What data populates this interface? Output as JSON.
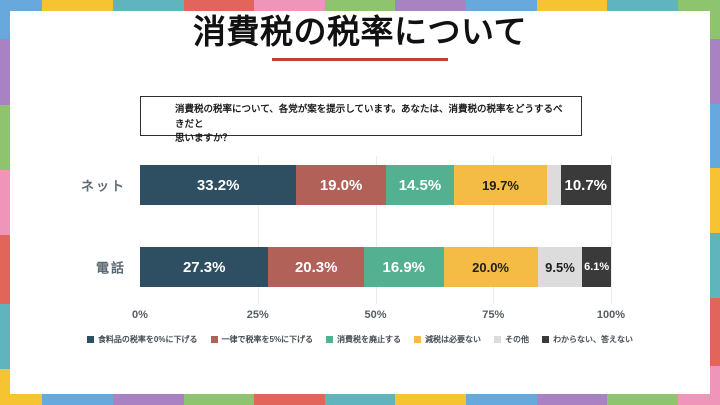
{
  "page": {
    "title": "消費税の税率について",
    "title_underline_color": "#bf4038",
    "question": "消費税の税率について、各党が案を提示しています。あなたは、消費税の税率をどうするべきだと\n思いますか？"
  },
  "chart_data": {
    "type": "bar",
    "subtype": "horizontal-stacked",
    "title": "消費税の税率について",
    "categories": [
      "ネット",
      "電話"
    ],
    "series": [
      {
        "name": "食料品の税率を0%に下げる",
        "color": "#2e4e61",
        "label_color": "#ffffff",
        "values": [
          33.2,
          27.3
        ],
        "labels": [
          "33.2%",
          "27.3%"
        ]
      },
      {
        "name": "一律で税率を5%に下げる",
        "color": "#b26158",
        "label_color": "#ffffff",
        "values": [
          19.0,
          20.3
        ],
        "labels": [
          "19.0%",
          "20.3%"
        ]
      },
      {
        "name": "消費税を廃止する",
        "color": "#53b091",
        "label_color": "#ffffff",
        "values": [
          14.5,
          16.9
        ],
        "labels": [
          "14.5%",
          "16.9%"
        ]
      },
      {
        "name": "減税は必要ない",
        "color": "#f4bb45",
        "label_color": "#1d1d1d",
        "values": [
          19.7,
          20.0
        ],
        "labels": [
          "19.7%",
          "20.0%"
        ]
      },
      {
        "name": "その他",
        "color": "#dcdcdc",
        "label_color": "#1d1d1d",
        "values": [
          2.9,
          9.5
        ],
        "labels": [
          "",
          "9.5%"
        ]
      },
      {
        "name": "わからない、答えない",
        "color": "#3a3a3a",
        "label_color": "#ffffff",
        "values": [
          10.7,
          6.1
        ],
        "labels": [
          "10.7%",
          "6.1%"
        ]
      }
    ],
    "x_ticks": [
      "0%",
      "25%",
      "50%",
      "75%",
      "100%"
    ],
    "x_range": [
      0,
      100
    ],
    "gridlines": true,
    "legend_position": "bottom"
  },
  "frame": {
    "palette": {
      "blue": "#68a9dd",
      "yellow": "#f6c332",
      "teal": "#5fb4bd",
      "red": "#e2655c",
      "pink": "#f095ba",
      "green": "#8ec46d",
      "purple": "#a882c2"
    },
    "sides": {
      "top": [
        [
          "blue",
          0.6
        ],
        [
          "yellow",
          1
        ],
        [
          "teal",
          1
        ],
        [
          "red",
          1
        ],
        [
          "pink",
          1
        ],
        [
          "green",
          1
        ],
        [
          "purple",
          1
        ],
        [
          "blue",
          1
        ],
        [
          "yellow",
          1
        ],
        [
          "teal",
          1
        ],
        [
          "green",
          0.6
        ]
      ],
      "right": [
        [
          "green",
          0.6
        ],
        [
          "purple",
          1
        ],
        [
          "blue",
          1
        ],
        [
          "yellow",
          1
        ],
        [
          "teal",
          1
        ],
        [
          "red",
          1.05
        ],
        [
          "pink",
          0.6
        ]
      ],
      "bottom": [
        [
          "yellow",
          0.6
        ],
        [
          "blue",
          1
        ],
        [
          "purple",
          1
        ],
        [
          "green",
          1
        ],
        [
          "red",
          1
        ],
        [
          "teal",
          1
        ],
        [
          "yellow",
          1
        ],
        [
          "blue",
          1
        ],
        [
          "purple",
          1
        ],
        [
          "green",
          1
        ],
        [
          "pink",
          0.6
        ]
      ],
      "left": [
        [
          "blue",
          0.6
        ],
        [
          "purple",
          1
        ],
        [
          "green",
          1
        ],
        [
          "pink",
          1
        ],
        [
          "red",
          1.05
        ],
        [
          "teal",
          1
        ],
        [
          "yellow",
          0.55
        ]
      ]
    }
  }
}
